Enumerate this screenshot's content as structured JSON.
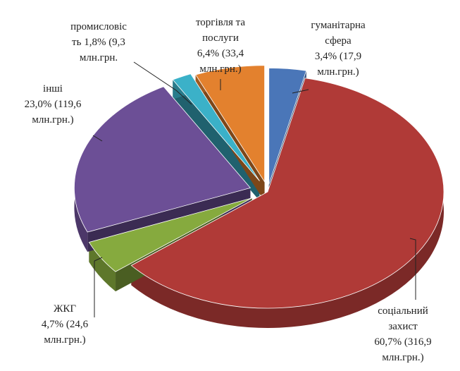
{
  "chart_data": {
    "type": "pie",
    "slices": [
      {
        "label": "гуманітарна сфера",
        "percent": 3.4,
        "value": 17.9,
        "unit": "млн.грн.",
        "color": "#4a76b8",
        "label_lines": [
          "гуманітарна",
          "сфера",
          "3,4% (17,9",
          "млн.грн.)"
        ]
      },
      {
        "label": "соціальний захист",
        "percent": 60.7,
        "value": 316.9,
        "unit": "млн.грн.",
        "color": "#b03a37",
        "label_lines": [
          "соціальний",
          "захист",
          "60,7% (316,9",
          "млн.грн.)"
        ]
      },
      {
        "label": "ЖКГ",
        "percent": 4.7,
        "value": 24.6,
        "unit": "млн.грн.",
        "color": "#86aa3e",
        "label_lines": [
          "ЖКГ",
          "4,7% (24,6",
          "млн.грн.)"
        ]
      },
      {
        "label": "інші",
        "percent": 23.0,
        "value": 119.6,
        "unit": "млн.грн.",
        "color": "#6c4f96",
        "label_lines": [
          "інші",
          "23,0% (119,6",
          "млн.грн.)"
        ]
      },
      {
        "label": "промисловість",
        "percent": 1.8,
        "value": 9.3,
        "unit": "млн.грн.",
        "color": "#3bb1c8",
        "label_lines": [
          "промисловіс",
          "ть 1,8% (9,3",
          "млн.грн."
        ]
      },
      {
        "label": "торгівля та послуги",
        "percent": 6.4,
        "value": 33.4,
        "unit": "млн.грн.",
        "color": "#e3812e",
        "label_lines": [
          "торгівля та",
          "послуги",
          "6,4% (33,4",
          "млн.грн.)"
        ]
      }
    ],
    "exploded": true,
    "three_d": true
  }
}
